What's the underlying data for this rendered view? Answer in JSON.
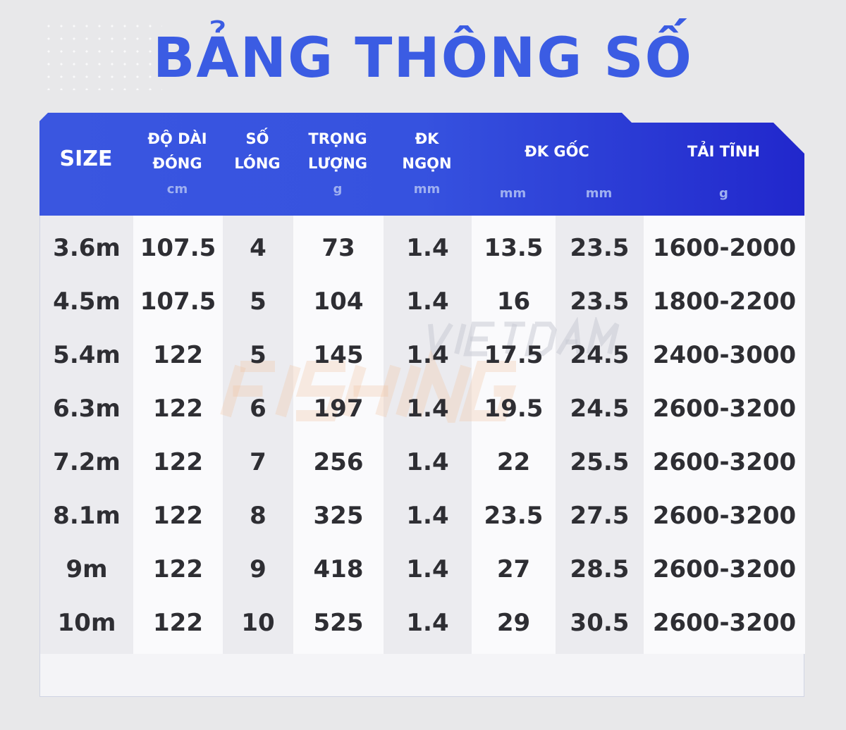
{
  "title": "BẢNG THÔNG SỐ",
  "watermark": {
    "line1": "VIETDAM",
    "line2": "FISHING"
  },
  "headers": [
    {
      "name": "SIZE",
      "unit": ""
    },
    {
      "name": "ĐỘ DÀI ĐÓNG",
      "line1": "ĐỘ DÀI",
      "line2": "ĐÓNG",
      "unit": "cm"
    },
    {
      "name": "SỐ LÓNG",
      "line1": "SỐ",
      "line2": "LÓNG",
      "unit": ""
    },
    {
      "name": "TRỌNG LƯỢNG",
      "line1": "TRỌNG",
      "line2": "LƯỢNG",
      "unit": "g"
    },
    {
      "name": "ĐK NGỌN",
      "line1": "ĐK",
      "line2": "NGỌN",
      "unit": "mm"
    },
    {
      "name": "ĐK GỐC",
      "unit1": "mm",
      "unit2": "mm"
    },
    {
      "name": "TẢI TĨNH",
      "unit": "g"
    }
  ],
  "rows": [
    [
      "3.6m",
      "107.5",
      "4",
      "73",
      "1.4",
      "13.5",
      "23.5",
      "1600-2000"
    ],
    [
      "4.5m",
      "107.5",
      "5",
      "104",
      "1.4",
      "16",
      "23.5",
      "1800-2200"
    ],
    [
      "5.4m",
      "122",
      "5",
      "145",
      "1.4",
      "17.5",
      "24.5",
      "2400-3000"
    ],
    [
      "6.3m",
      "122",
      "6",
      "197",
      "1.4",
      "19.5",
      "24.5",
      "2600-3200"
    ],
    [
      "7.2m",
      "122",
      "7",
      "256",
      "1.4",
      "22",
      "25.5",
      "2600-3200"
    ],
    [
      "8.1m",
      "122",
      "8",
      "325",
      "1.4",
      "23.5",
      "27.5",
      "2600-3200"
    ],
    [
      "9m",
      "122",
      "9",
      "418",
      "1.4",
      "27",
      "28.5",
      "2600-3200"
    ],
    [
      "10m",
      "122",
      "10",
      "525",
      "1.4",
      "29",
      "30.5",
      "2600-3200"
    ]
  ],
  "colors": {
    "accent": "#3b5ce3",
    "header_start": "#3a56e0",
    "header_end": "#2127cc",
    "text": "#2e2e33"
  }
}
